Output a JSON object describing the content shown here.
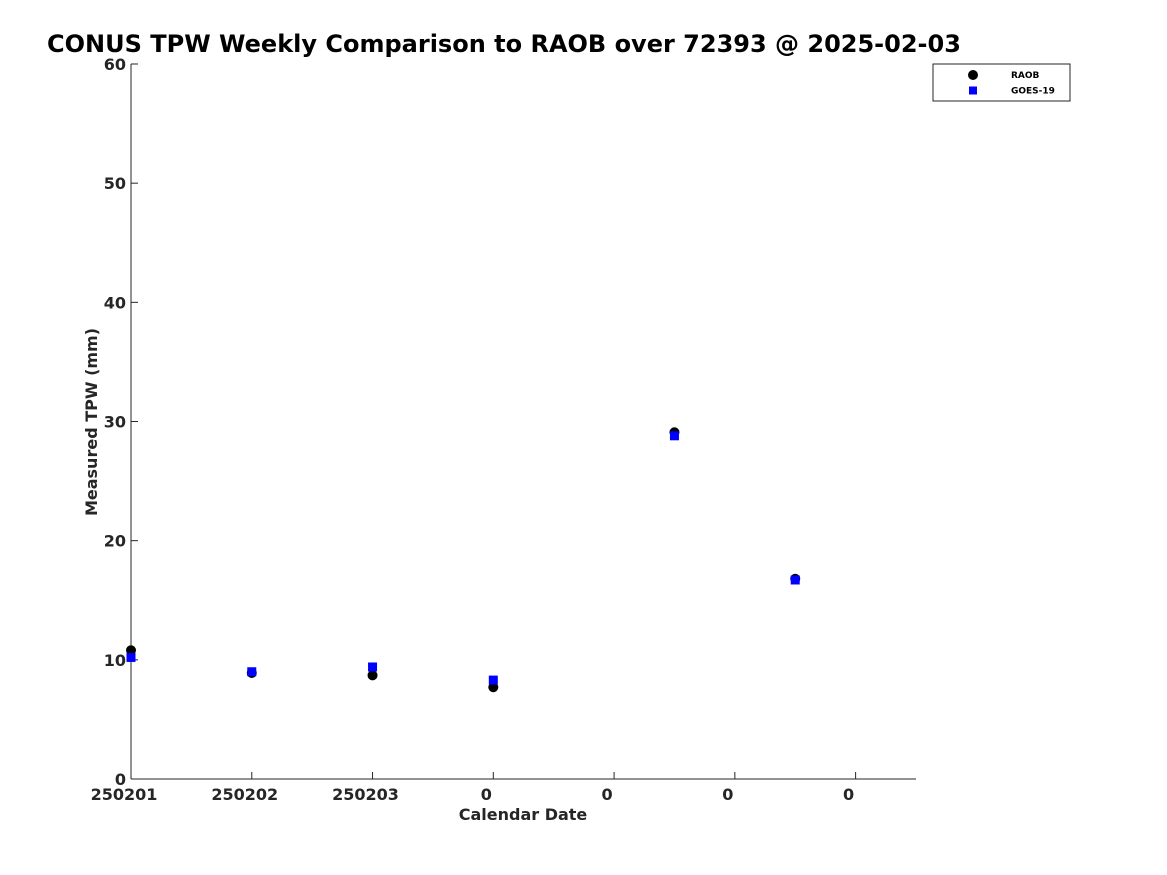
{
  "chart_data": {
    "type": "scatter",
    "title": "CONUS TPW Weekly Comparison to RAOB over 72393 @ 2025-02-03",
    "xlabel": "Calendar Date",
    "ylabel": "Measured TPW (mm)",
    "xlim": [
      0,
      6.5
    ],
    "ylim": [
      0,
      60
    ],
    "xticks": [
      0,
      1,
      2,
      3,
      4,
      5,
      6
    ],
    "xtick_labels": [
      "250201",
      "250202",
      "250203",
      "0",
      "0",
      "0",
      "0"
    ],
    "yticks": [
      0,
      10,
      20,
      30,
      40,
      50,
      60
    ],
    "ytick_labels": [
      "0",
      "10",
      "20",
      "30",
      "40",
      "50",
      "60"
    ],
    "legend_position": "top-right",
    "series": [
      {
        "name": "RAOB",
        "marker": "circle",
        "color": "#000000",
        "points": [
          [
            0,
            10.8
          ],
          [
            1,
            8.9
          ],
          [
            2,
            8.7
          ],
          [
            3,
            7.7
          ],
          [
            4.5,
            29.1
          ],
          [
            5.5,
            16.8
          ]
        ]
      },
      {
        "name": "GOES-19",
        "marker": "square",
        "color": "#0000ff",
        "points": [
          [
            0,
            10.2
          ],
          [
            1,
            9.0
          ],
          [
            2,
            9.4
          ],
          [
            3,
            8.3
          ],
          [
            4.5,
            28.8
          ],
          [
            5.5,
            16.7
          ]
        ]
      }
    ]
  }
}
